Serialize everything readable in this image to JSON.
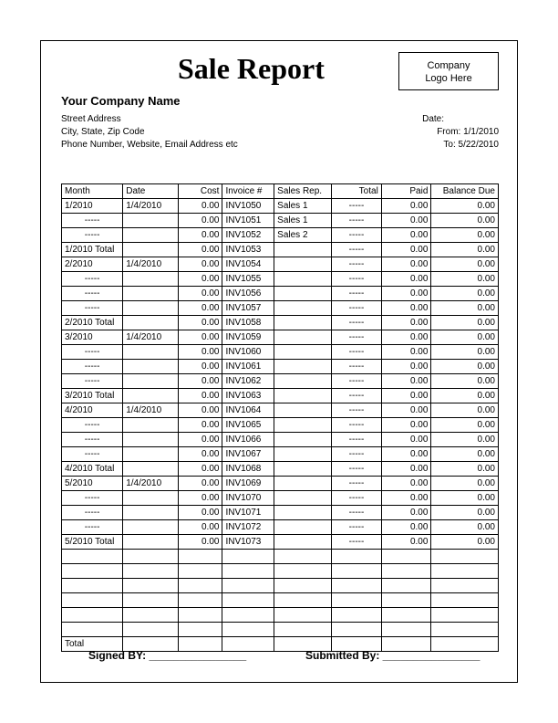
{
  "title": "Sale Report",
  "logo_line1": "Company",
  "logo_line2": "Logo Here",
  "company": {
    "name": "Your Company Name",
    "street": "Street Address",
    "csz": "City, State, Zip Code",
    "contact": "Phone Number, Website, Email Address etc"
  },
  "date_label": "Date:",
  "from": "From: 1/1/2010",
  "to": "To: 5/22/2010",
  "columns": [
    "Month",
    "Date",
    "Cost",
    "Invoice #",
    "Sales Rep.",
    "Total",
    "Paid",
    "Balance Due"
  ],
  "rows": [
    {
      "month": "1/2010",
      "date": "1/4/2010",
      "cost": "0.00",
      "inv": "INV1050",
      "rep": "Sales 1",
      "total": "-----",
      "paid": "0.00",
      "bal": "0.00"
    },
    {
      "month": "-----",
      "date": "",
      "cost": "0.00",
      "inv": "INV1051",
      "rep": "Sales 1",
      "total": "-----",
      "paid": "0.00",
      "bal": "0.00",
      "mdash": true
    },
    {
      "month": "-----",
      "date": "",
      "cost": "0.00",
      "inv": "INV1052",
      "rep": "Sales 2",
      "total": "-----",
      "paid": "0.00",
      "bal": "0.00",
      "mdash": true
    },
    {
      "month": "1/2010 Total",
      "date": "",
      "cost": "0.00",
      "inv": "INV1053",
      "rep": "",
      "total": "-----",
      "paid": "0.00",
      "bal": "0.00"
    },
    {
      "month": "2/2010",
      "date": "1/4/2010",
      "cost": "0.00",
      "inv": "INV1054",
      "rep": "",
      "total": "-----",
      "paid": "0.00",
      "bal": "0.00"
    },
    {
      "month": "-----",
      "date": "",
      "cost": "0.00",
      "inv": "INV1055",
      "rep": "",
      "total": "-----",
      "paid": "0.00",
      "bal": "0.00",
      "mdash": true
    },
    {
      "month": "-----",
      "date": "",
      "cost": "0.00",
      "inv": "INV1056",
      "rep": "",
      "total": "-----",
      "paid": "0.00",
      "bal": "0.00",
      "mdash": true
    },
    {
      "month": "-----",
      "date": "",
      "cost": "0.00",
      "inv": "INV1057",
      "rep": "",
      "total": "-----",
      "paid": "0.00",
      "bal": "0.00",
      "mdash": true
    },
    {
      "month": "2/2010 Total",
      "date": "",
      "cost": "0.00",
      "inv": "INV1058",
      "rep": "",
      "total": "-----",
      "paid": "0.00",
      "bal": "0.00"
    },
    {
      "month": "3/2010",
      "date": "1/4/2010",
      "cost": "0.00",
      "inv": "INV1059",
      "rep": "",
      "total": "-----",
      "paid": "0.00",
      "bal": "0.00"
    },
    {
      "month": "-----",
      "date": "",
      "cost": "0.00",
      "inv": "INV1060",
      "rep": "",
      "total": "-----",
      "paid": "0.00",
      "bal": "0.00",
      "mdash": true
    },
    {
      "month": "-----",
      "date": "",
      "cost": "0.00",
      "inv": "INV1061",
      "rep": "",
      "total": "-----",
      "paid": "0.00",
      "bal": "0.00",
      "mdash": true
    },
    {
      "month": "-----",
      "date": "",
      "cost": "0.00",
      "inv": "INV1062",
      "rep": "",
      "total": "-----",
      "paid": "0.00",
      "bal": "0.00",
      "mdash": true
    },
    {
      "month": "3/2010 Total",
      "date": "",
      "cost": "0.00",
      "inv": "INV1063",
      "rep": "",
      "total": "-----",
      "paid": "0.00",
      "bal": "0.00"
    },
    {
      "month": "4/2010",
      "date": "1/4/2010",
      "cost": "0.00",
      "inv": "INV1064",
      "rep": "",
      "total": "-----",
      "paid": "0.00",
      "bal": "0.00"
    },
    {
      "month": "-----",
      "date": "",
      "cost": "0.00",
      "inv": "INV1065",
      "rep": "",
      "total": "-----",
      "paid": "0.00",
      "bal": "0.00",
      "mdash": true
    },
    {
      "month": "-----",
      "date": "",
      "cost": "0.00",
      "inv": "INV1066",
      "rep": "",
      "total": "-----",
      "paid": "0.00",
      "bal": "0.00",
      "mdash": true
    },
    {
      "month": "-----",
      "date": "",
      "cost": "0.00",
      "inv": "INV1067",
      "rep": "",
      "total": "-----",
      "paid": "0.00",
      "bal": "0.00",
      "mdash": true
    },
    {
      "month": "4/2010 Total",
      "date": "",
      "cost": "0.00",
      "inv": "INV1068",
      "rep": "",
      "total": "-----",
      "paid": "0.00",
      "bal": "0.00"
    },
    {
      "month": "5/2010",
      "date": "1/4/2010",
      "cost": "0.00",
      "inv": "INV1069",
      "rep": "",
      "total": "-----",
      "paid": "0.00",
      "bal": "0.00"
    },
    {
      "month": "-----",
      "date": "",
      "cost": "0.00",
      "inv": "INV1070",
      "rep": "",
      "total": "-----",
      "paid": "0.00",
      "bal": "0.00",
      "mdash": true
    },
    {
      "month": "-----",
      "date": "",
      "cost": "0.00",
      "inv": "INV1071",
      "rep": "",
      "total": "-----",
      "paid": "0.00",
      "bal": "0.00",
      "mdash": true
    },
    {
      "month": "-----",
      "date": "",
      "cost": "0.00",
      "inv": "INV1072",
      "rep": "",
      "total": "-----",
      "paid": "0.00",
      "bal": "0.00",
      "mdash": true
    },
    {
      "month": "5/2010 Total",
      "date": "",
      "cost": "0.00",
      "inv": "INV1073",
      "rep": "",
      "total": "-----",
      "paid": "0.00",
      "bal": "0.00"
    }
  ],
  "empty_rows": 6,
  "total_label": "Total",
  "signed": "Signed BY: ________________",
  "submitted": "Submitted By: ________________"
}
